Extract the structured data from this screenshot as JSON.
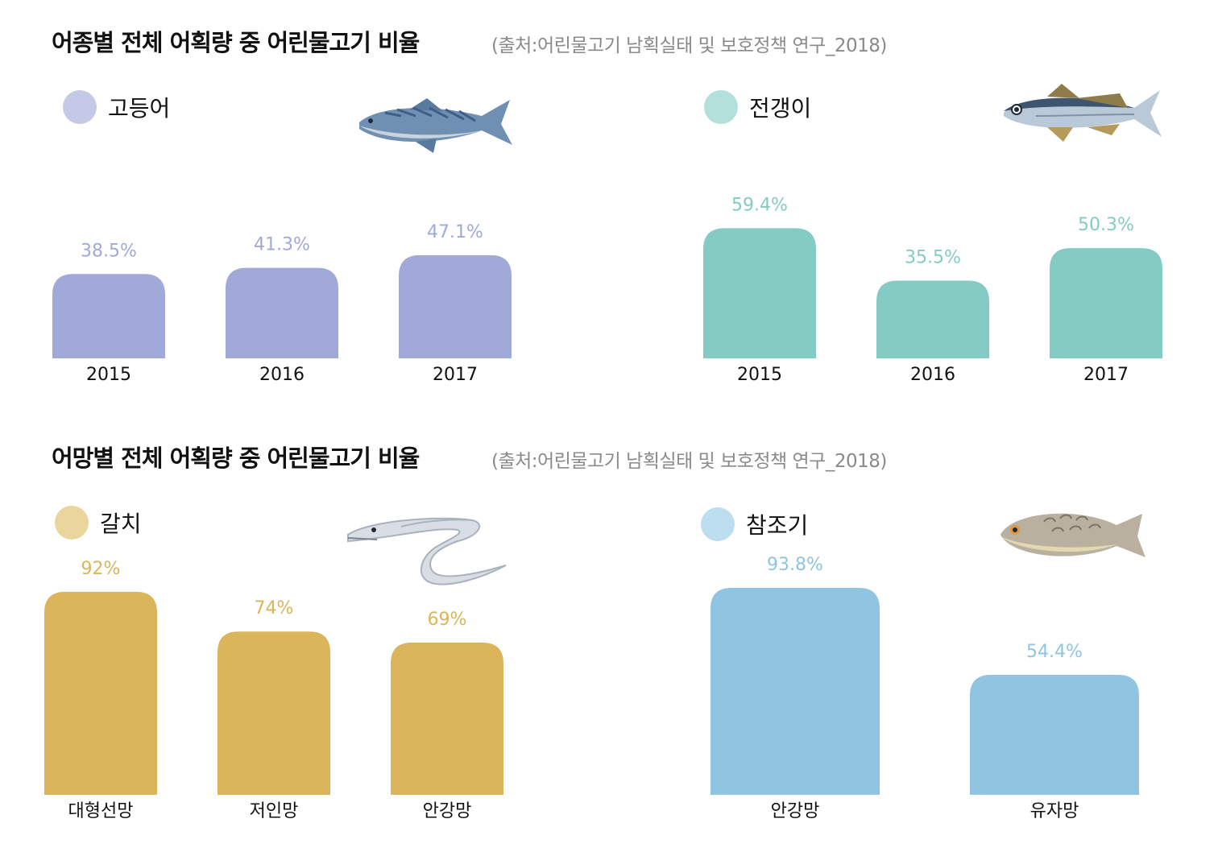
{
  "sections": [
    {
      "title": "어종별 전체 어획량 중 어린물고기 비율",
      "source": "(출처:어린물고기 남획실태 및 보호정책 연구_2018)"
    },
    {
      "title": "어망별 전체 어획량 중 어린물고기 비율",
      "source": "(출처:어린물고기 남획실태 및 보호정책 연구_2018)"
    }
  ],
  "colors": {
    "mackerel": "#a0a9d8",
    "mackerel_label": "#a0a9d8",
    "mackerel_dot": "#c4c9e8",
    "horse_mackerel": "#83cbc3",
    "horse_mackerel_label": "#83cbc3",
    "horse_mackerel_dot": "#b3e0da",
    "hairtail": "#dbb55b",
    "hairtail_label": "#dbb55b",
    "hairtail_dot": "#ead69c",
    "croaker": "#8fc5e1",
    "croaker_label": "#8fc5e1",
    "croaker_dot": "#bcdef0"
  },
  "chart_data": [
    {
      "type": "bar",
      "name": "고등어",
      "icon": "mackerel-icon",
      "categories": [
        "2015",
        "2016",
        "2017"
      ],
      "values": [
        38.5,
        41.3,
        47.1
      ],
      "labels": [
        "38.5%",
        "41.3%",
        "47.1%"
      ],
      "ylim": [
        0,
        100
      ]
    },
    {
      "type": "bar",
      "name": "전갱이",
      "icon": "horse-mackerel-icon",
      "categories": [
        "2015",
        "2016",
        "2017"
      ],
      "values": [
        59.4,
        35.5,
        50.3
      ],
      "labels": [
        "59.4%",
        "35.5%",
        "50.3%"
      ],
      "ylim": [
        0,
        100
      ]
    },
    {
      "type": "bar",
      "name": "갈치",
      "icon": "hairtail-icon",
      "categories": [
        "대형선망",
        "저인망",
        "안강망"
      ],
      "values": [
        92,
        74,
        69
      ],
      "labels": [
        "92%",
        "74%",
        "69%"
      ],
      "ylim": [
        0,
        100
      ]
    },
    {
      "type": "bar",
      "name": "참조기",
      "icon": "croaker-icon",
      "categories": [
        "안강망",
        "유자망"
      ],
      "values": [
        93.8,
        54.4
      ],
      "labels": [
        "93.8%",
        "54.4%"
      ],
      "ylim": [
        0,
        100
      ]
    }
  ]
}
